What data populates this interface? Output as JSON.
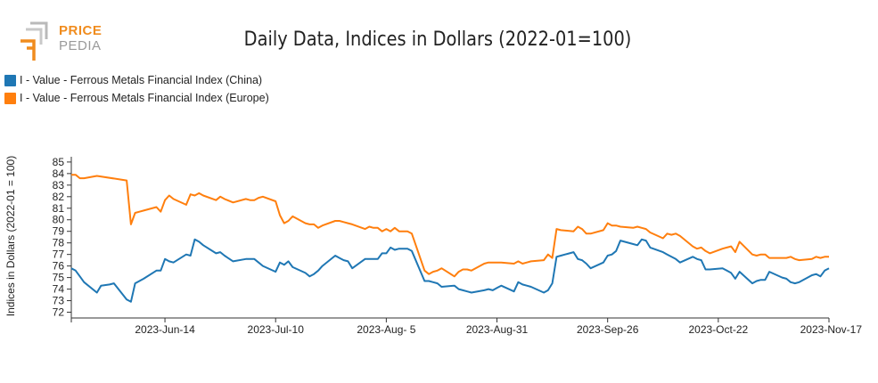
{
  "logo": {
    "word1": "PRICE",
    "word2": "PEDIA",
    "colors": {
      "orange": "#f08c1e",
      "gray": "#b9b9b9"
    }
  },
  "chart_data": {
    "type": "line",
    "title": "Daily Data, Indices in Dollars (2022-01=100)",
    "ylabel": "Indices in Dollars (2022-01 = 100)",
    "xlabel": "",
    "ylim": [
      71.5,
      85.3
    ],
    "yticks": [
      72,
      73,
      74,
      75,
      76,
      77,
      78,
      79,
      80,
      81,
      82,
      83,
      84,
      85
    ],
    "xlim": [
      "2023-05-23",
      "2023-11-17"
    ],
    "xticks": [
      {
        "date": "2023-06-14",
        "label": "2023-Jun-14"
      },
      {
        "date": "2023-07-10",
        "label": "2023-Jul-10"
      },
      {
        "date": "2023-08-05",
        "label": "2023-Aug- 5"
      },
      {
        "date": "2023-08-31",
        "label": "2023-Aug-31"
      },
      {
        "date": "2023-09-26",
        "label": "2023-Sep-26"
      },
      {
        "date": "2023-10-22",
        "label": "2023-Oct-22"
      },
      {
        "date": "2023-11-17",
        "label": "2023-Nov-17"
      }
    ],
    "grid": false,
    "legend_position": "top-left",
    "series": [
      {
        "name": "I - Value - Ferrous Metals Financial Index (China)",
        "color": "#1f77b4",
        "points": [
          [
            "2023-05-23",
            75.8
          ],
          [
            "2023-05-24",
            75.6
          ],
          [
            "2023-05-25",
            75.1
          ],
          [
            "2023-05-26",
            74.6
          ],
          [
            "2023-05-29",
            73.7
          ],
          [
            "2023-05-30",
            74.3
          ],
          [
            "2023-06-01",
            74.4
          ],
          [
            "2023-06-02",
            74.5
          ],
          [
            "2023-06-05",
            73.1
          ],
          [
            "2023-06-06",
            72.9
          ],
          [
            "2023-06-07",
            74.5
          ],
          [
            "2023-06-08",
            74.7
          ],
          [
            "2023-06-09",
            74.9
          ],
          [
            "2023-06-12",
            75.6
          ],
          [
            "2023-06-13",
            75.6
          ],
          [
            "2023-06-14",
            76.6
          ],
          [
            "2023-06-15",
            76.4
          ],
          [
            "2023-06-16",
            76.3
          ],
          [
            "2023-06-19",
            77.0
          ],
          [
            "2023-06-20",
            76.9
          ],
          [
            "2023-06-21",
            78.3
          ],
          [
            "2023-06-22",
            78.1
          ],
          [
            "2023-06-23",
            77.8
          ],
          [
            "2023-06-26",
            77.1
          ],
          [
            "2023-06-27",
            77.2
          ],
          [
            "2023-06-28",
            76.9
          ],
          [
            "2023-06-30",
            76.4
          ],
          [
            "2023-07-03",
            76.6
          ],
          [
            "2023-07-04",
            76.6
          ],
          [
            "2023-07-05",
            76.6
          ],
          [
            "2023-07-06",
            76.3
          ],
          [
            "2023-07-07",
            76.0
          ],
          [
            "2023-07-10",
            75.5
          ],
          [
            "2023-07-11",
            76.3
          ],
          [
            "2023-07-12",
            76.1
          ],
          [
            "2023-07-13",
            76.4
          ],
          [
            "2023-07-14",
            75.9
          ],
          [
            "2023-07-17",
            75.4
          ],
          [
            "2023-07-18",
            75.1
          ],
          [
            "2023-07-19",
            75.3
          ],
          [
            "2023-07-20",
            75.6
          ],
          [
            "2023-07-21",
            76.0
          ],
          [
            "2023-07-24",
            76.9
          ],
          [
            "2023-07-25",
            76.7
          ],
          [
            "2023-07-26",
            76.5
          ],
          [
            "2023-07-27",
            76.4
          ],
          [
            "2023-07-28",
            75.8
          ],
          [
            "2023-07-31",
            76.6
          ],
          [
            "2023-08-01",
            76.6
          ],
          [
            "2023-08-02",
            76.6
          ],
          [
            "2023-08-03",
            76.6
          ],
          [
            "2023-08-04",
            77.1
          ],
          [
            "2023-08-05",
            77.1
          ],
          [
            "2023-08-06",
            77.6
          ],
          [
            "2023-08-07",
            77.4
          ],
          [
            "2023-08-08",
            77.5
          ],
          [
            "2023-08-09",
            77.5
          ],
          [
            "2023-08-10",
            77.5
          ],
          [
            "2023-08-11",
            77.3
          ],
          [
            "2023-08-14",
            74.7
          ],
          [
            "2023-08-15",
            74.7
          ],
          [
            "2023-08-16",
            74.6
          ],
          [
            "2023-08-17",
            74.5
          ],
          [
            "2023-08-18",
            74.2
          ],
          [
            "2023-08-21",
            74.3
          ],
          [
            "2023-08-22",
            74.0
          ],
          [
            "2023-08-23",
            73.9
          ],
          [
            "2023-08-24",
            73.8
          ],
          [
            "2023-08-25",
            73.7
          ],
          [
            "2023-08-28",
            73.9
          ],
          [
            "2023-08-29",
            74.0
          ],
          [
            "2023-08-30",
            73.9
          ],
          [
            "2023-08-31",
            74.1
          ],
          [
            "2023-09-01",
            74.3
          ],
          [
            "2023-09-04",
            73.8
          ],
          [
            "2023-09-05",
            74.6
          ],
          [
            "2023-09-06",
            74.4
          ],
          [
            "2023-09-07",
            74.3
          ],
          [
            "2023-09-08",
            74.2
          ],
          [
            "2023-09-11",
            73.7
          ],
          [
            "2023-09-12",
            73.9
          ],
          [
            "2023-09-13",
            74.5
          ],
          [
            "2023-09-14",
            76.8
          ],
          [
            "2023-09-15",
            76.9
          ],
          [
            "2023-09-18",
            77.2
          ],
          [
            "2023-09-19",
            76.6
          ],
          [
            "2023-09-20",
            76.5
          ],
          [
            "2023-09-21",
            76.2
          ],
          [
            "2023-09-22",
            75.8
          ],
          [
            "2023-09-25",
            76.3
          ],
          [
            "2023-09-26",
            76.9
          ],
          [
            "2023-09-27",
            77.0
          ],
          [
            "2023-09-28",
            77.3
          ],
          [
            "2023-09-29",
            78.2
          ],
          [
            "2023-10-02",
            77.9
          ],
          [
            "2023-10-03",
            77.8
          ],
          [
            "2023-10-04",
            78.3
          ],
          [
            "2023-10-05",
            78.2
          ],
          [
            "2023-10-06",
            77.6
          ],
          [
            "2023-10-09",
            77.2
          ],
          [
            "2023-10-10",
            77.0
          ],
          [
            "2023-10-11",
            76.8
          ],
          [
            "2023-10-12",
            76.6
          ],
          [
            "2023-10-13",
            76.3
          ],
          [
            "2023-10-16",
            76.8
          ],
          [
            "2023-10-17",
            76.6
          ],
          [
            "2023-10-18",
            76.5
          ],
          [
            "2023-10-19",
            75.7
          ],
          [
            "2023-10-20",
            75.7
          ],
          [
            "2023-10-23",
            75.8
          ],
          [
            "2023-10-24",
            75.6
          ],
          [
            "2023-10-25",
            75.4
          ],
          [
            "2023-10-26",
            74.9
          ],
          [
            "2023-10-27",
            75.5
          ],
          [
            "2023-10-30",
            74.5
          ],
          [
            "2023-10-31",
            74.7
          ],
          [
            "2023-11-01",
            74.8
          ],
          [
            "2023-11-02",
            74.8
          ],
          [
            "2023-11-03",
            75.5
          ],
          [
            "2023-11-06",
            75.0
          ],
          [
            "2023-11-07",
            74.9
          ],
          [
            "2023-11-08",
            74.6
          ],
          [
            "2023-11-09",
            74.5
          ],
          [
            "2023-11-10",
            74.6
          ],
          [
            "2023-11-13",
            75.2
          ],
          [
            "2023-11-14",
            75.3
          ],
          [
            "2023-11-15",
            75.1
          ],
          [
            "2023-11-16",
            75.6
          ],
          [
            "2023-11-17",
            75.8
          ]
        ]
      },
      {
        "name": "I - Value - Ferrous Metals Financial Index (Europe)",
        "color": "#ff7f0e",
        "points": [
          [
            "2023-05-23",
            83.9
          ],
          [
            "2023-05-24",
            83.9
          ],
          [
            "2023-05-25",
            83.6
          ],
          [
            "2023-05-26",
            83.6
          ],
          [
            "2023-05-29",
            83.8
          ],
          [
            "2023-06-05",
            83.4
          ],
          [
            "2023-06-06",
            79.6
          ],
          [
            "2023-06-07",
            80.6
          ],
          [
            "2023-06-08",
            80.7
          ],
          [
            "2023-06-09",
            80.8
          ],
          [
            "2023-06-12",
            81.1
          ],
          [
            "2023-06-13",
            80.7
          ],
          [
            "2023-06-14",
            81.7
          ],
          [
            "2023-06-15",
            82.1
          ],
          [
            "2023-06-16",
            81.8
          ],
          [
            "2023-06-19",
            81.3
          ],
          [
            "2023-06-20",
            82.2
          ],
          [
            "2023-06-21",
            82.1
          ],
          [
            "2023-06-22",
            82.3
          ],
          [
            "2023-06-23",
            82.1
          ],
          [
            "2023-06-26",
            81.7
          ],
          [
            "2023-06-27",
            82.0
          ],
          [
            "2023-06-28",
            81.8
          ],
          [
            "2023-06-30",
            81.5
          ],
          [
            "2023-07-03",
            81.8
          ],
          [
            "2023-07-04",
            81.7
          ],
          [
            "2023-07-05",
            81.7
          ],
          [
            "2023-07-06",
            81.9
          ],
          [
            "2023-07-07",
            82.0
          ],
          [
            "2023-07-10",
            81.6
          ],
          [
            "2023-07-11",
            80.4
          ],
          [
            "2023-07-12",
            79.7
          ],
          [
            "2023-07-13",
            79.9
          ],
          [
            "2023-07-14",
            80.3
          ],
          [
            "2023-07-17",
            79.7
          ],
          [
            "2023-07-18",
            79.6
          ],
          [
            "2023-07-19",
            79.6
          ],
          [
            "2023-07-20",
            79.3
          ],
          [
            "2023-07-21",
            79.5
          ],
          [
            "2023-07-24",
            79.9
          ],
          [
            "2023-07-25",
            79.9
          ],
          [
            "2023-07-26",
            79.8
          ],
          [
            "2023-07-27",
            79.7
          ],
          [
            "2023-07-28",
            79.6
          ],
          [
            "2023-07-31",
            79.2
          ],
          [
            "2023-08-01",
            79.4
          ],
          [
            "2023-08-02",
            79.3
          ],
          [
            "2023-08-03",
            79.3
          ],
          [
            "2023-08-04",
            79.0
          ],
          [
            "2023-08-05",
            79.2
          ],
          [
            "2023-08-06",
            79.0
          ],
          [
            "2023-08-07",
            79.3
          ],
          [
            "2023-08-08",
            79.0
          ],
          [
            "2023-08-09",
            79.0
          ],
          [
            "2023-08-10",
            79.0
          ],
          [
            "2023-08-11",
            78.8
          ],
          [
            "2023-08-14",
            75.6
          ],
          [
            "2023-08-15",
            75.3
          ],
          [
            "2023-08-16",
            75.5
          ],
          [
            "2023-08-17",
            75.6
          ],
          [
            "2023-08-18",
            75.8
          ],
          [
            "2023-08-21",
            75.1
          ],
          [
            "2023-08-22",
            75.5
          ],
          [
            "2023-08-23",
            75.7
          ],
          [
            "2023-08-24",
            75.7
          ],
          [
            "2023-08-25",
            75.6
          ],
          [
            "2023-08-28",
            76.2
          ],
          [
            "2023-08-29",
            76.3
          ],
          [
            "2023-08-30",
            76.3
          ],
          [
            "2023-08-31",
            76.3
          ],
          [
            "2023-09-01",
            76.3
          ],
          [
            "2023-09-04",
            76.2
          ],
          [
            "2023-09-05",
            76.4
          ],
          [
            "2023-09-06",
            76.2
          ],
          [
            "2023-09-07",
            76.3
          ],
          [
            "2023-09-08",
            76.4
          ],
          [
            "2023-09-11",
            76.5
          ],
          [
            "2023-09-12",
            77.0
          ],
          [
            "2023-09-13",
            76.7
          ],
          [
            "2023-09-14",
            79.2
          ],
          [
            "2023-09-15",
            79.1
          ],
          [
            "2023-09-18",
            79.0
          ],
          [
            "2023-09-19",
            79.4
          ],
          [
            "2023-09-20",
            79.2
          ],
          [
            "2023-09-21",
            78.8
          ],
          [
            "2023-09-22",
            78.8
          ],
          [
            "2023-09-25",
            79.1
          ],
          [
            "2023-09-26",
            79.7
          ],
          [
            "2023-09-27",
            79.5
          ],
          [
            "2023-09-28",
            79.5
          ],
          [
            "2023-09-29",
            79.4
          ],
          [
            "2023-10-02",
            79.3
          ],
          [
            "2023-10-03",
            79.4
          ],
          [
            "2023-10-04",
            79.3
          ],
          [
            "2023-10-05",
            79.2
          ],
          [
            "2023-10-06",
            78.9
          ],
          [
            "2023-10-09",
            78.4
          ],
          [
            "2023-10-10",
            78.8
          ],
          [
            "2023-10-11",
            78.7
          ],
          [
            "2023-10-12",
            78.8
          ],
          [
            "2023-10-13",
            78.6
          ],
          [
            "2023-10-16",
            77.7
          ],
          [
            "2023-10-17",
            77.5
          ],
          [
            "2023-10-18",
            77.6
          ],
          [
            "2023-10-19",
            77.3
          ],
          [
            "2023-10-20",
            77.1
          ],
          [
            "2023-10-23",
            77.5
          ],
          [
            "2023-10-24",
            77.6
          ],
          [
            "2023-10-25",
            77.7
          ],
          [
            "2023-10-26",
            77.2
          ],
          [
            "2023-10-27",
            78.1
          ],
          [
            "2023-10-30",
            77.0
          ],
          [
            "2023-10-31",
            76.9
          ],
          [
            "2023-11-01",
            77.0
          ],
          [
            "2023-11-02",
            77.0
          ],
          [
            "2023-11-03",
            76.7
          ],
          [
            "2023-11-06",
            76.7
          ],
          [
            "2023-11-07",
            76.7
          ],
          [
            "2023-11-08",
            76.8
          ],
          [
            "2023-11-09",
            76.6
          ],
          [
            "2023-11-10",
            76.5
          ],
          [
            "2023-11-13",
            76.6
          ],
          [
            "2023-11-14",
            76.8
          ],
          [
            "2023-11-15",
            76.7
          ],
          [
            "2023-11-16",
            76.8
          ],
          [
            "2023-11-17",
            76.8
          ]
        ]
      }
    ]
  }
}
